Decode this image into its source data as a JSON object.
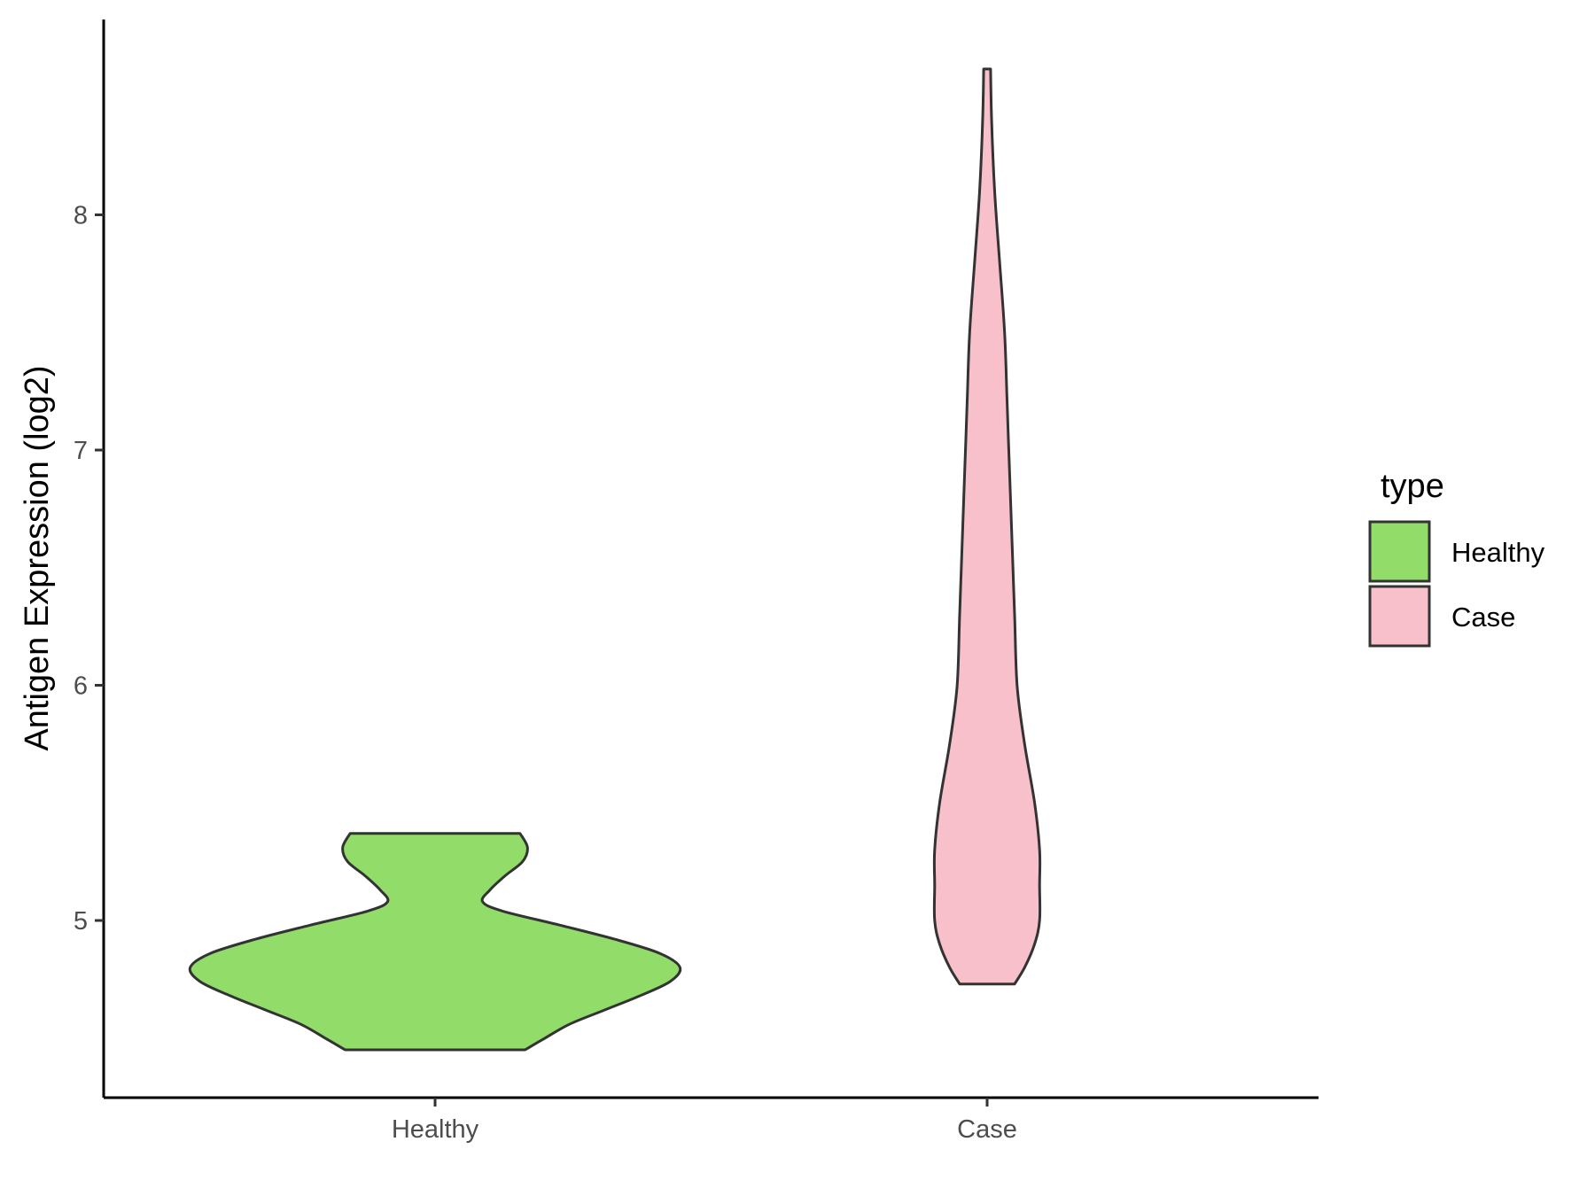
{
  "chart_data": {
    "type": "violin",
    "title": "",
    "xlabel": "",
    "ylabel": "Antigen Expression (log2)",
    "ylim": [
      4.3,
      8.85
    ],
    "yticks": [
      5,
      6,
      7,
      8
    ],
    "categories": [
      "Healthy",
      "Case"
    ],
    "grid": false,
    "legend": {
      "title": "type",
      "position": "right",
      "entries": [
        {
          "label": "Healthy",
          "color": "#92DC6A"
        },
        {
          "label": "Case",
          "color": "#F7C0CB"
        }
      ]
    },
    "series": [
      {
        "name": "Healthy",
        "color": "#92DC6A",
        "min": 4.45,
        "max": 5.37,
        "density": [
          [
            4.45,
            0.36
          ],
          [
            4.5,
            0.44
          ],
          [
            4.56,
            0.54
          ],
          [
            4.62,
            0.68
          ],
          [
            4.68,
            0.82
          ],
          [
            4.74,
            0.94
          ],
          [
            4.8,
            0.98
          ],
          [
            4.86,
            0.9
          ],
          [
            4.92,
            0.72
          ],
          [
            4.98,
            0.5
          ],
          [
            5.04,
            0.27
          ],
          [
            5.08,
            0.19
          ],
          [
            5.13,
            0.22
          ],
          [
            5.19,
            0.28
          ],
          [
            5.25,
            0.35
          ],
          [
            5.31,
            0.37
          ],
          [
            5.37,
            0.34
          ]
        ]
      },
      {
        "name": "Case",
        "color": "#F7C0CB",
        "min": 4.73,
        "max": 8.62,
        "density": [
          [
            4.73,
            0.11
          ],
          [
            4.8,
            0.15
          ],
          [
            4.9,
            0.19
          ],
          [
            5.0,
            0.21
          ],
          [
            5.15,
            0.21
          ],
          [
            5.3,
            0.21
          ],
          [
            5.5,
            0.19
          ],
          [
            5.75,
            0.15
          ],
          [
            6.0,
            0.12
          ],
          [
            6.3,
            0.11
          ],
          [
            6.6,
            0.1
          ],
          [
            6.9,
            0.09
          ],
          [
            7.2,
            0.08
          ],
          [
            7.5,
            0.07
          ],
          [
            7.8,
            0.05
          ],
          [
            8.1,
            0.03
          ],
          [
            8.4,
            0.018
          ],
          [
            8.62,
            0.014
          ]
        ]
      }
    ]
  }
}
